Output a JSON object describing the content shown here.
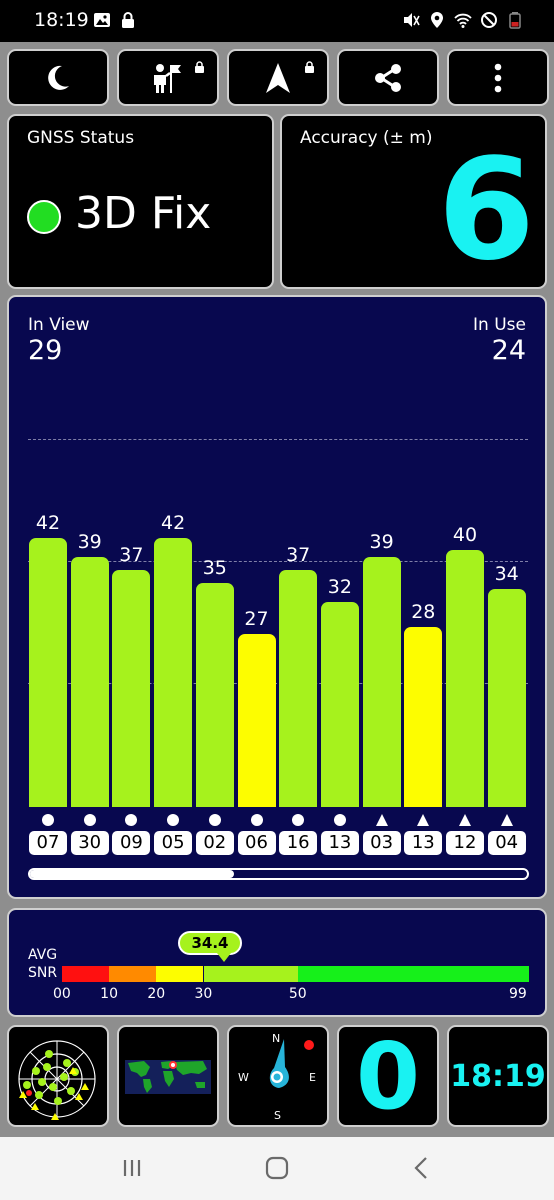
{
  "status_bar": {
    "time": "18:19",
    "left_icons": [
      "image-icon",
      "lock-icon"
    ],
    "right_icons": [
      "mute-icon",
      "location-icon",
      "wifi-icon",
      "do-not-disturb-icon",
      "battery-icon"
    ]
  },
  "toolbar": {
    "buttons": [
      {
        "icon": "moon-icon",
        "locked": false
      },
      {
        "icon": "tourist-flag-icon",
        "locked": true
      },
      {
        "icon": "navigation-arrow-icon",
        "locked": true
      },
      {
        "icon": "share-icon",
        "locked": false
      },
      {
        "icon": "more-vert-icon",
        "locked": false
      }
    ]
  },
  "gnss_status": {
    "title": "GNSS Status",
    "fix": "3D Fix",
    "fix_color": "#22dd22"
  },
  "accuracy": {
    "title": "Accuracy (± m)",
    "value": "6"
  },
  "satellites": {
    "in_view_label": "In View",
    "in_view": "29",
    "in_use_label": "In Use",
    "in_use": "24",
    "ymax": 58,
    "colors": {
      "strong": "#a6f21d",
      "weak": "#fdfd00",
      "background": "#08084f"
    },
    "bars": [
      {
        "id": "07",
        "snr": 42,
        "constellation": "circle"
      },
      {
        "id": "30",
        "snr": 39,
        "constellation": "circle"
      },
      {
        "id": "09",
        "snr": 37,
        "constellation": "circle"
      },
      {
        "id": "05",
        "snr": 42,
        "constellation": "circle"
      },
      {
        "id": "02",
        "snr": 35,
        "constellation": "circle"
      },
      {
        "id": "06",
        "snr": 27,
        "constellation": "circle"
      },
      {
        "id": "16",
        "snr": 37,
        "constellation": "circle"
      },
      {
        "id": "13",
        "snr": 32,
        "constellation": "circle"
      },
      {
        "id": "03",
        "snr": 39,
        "constellation": "triangle"
      },
      {
        "id": "13",
        "snr": 28,
        "constellation": "triangle"
      },
      {
        "id": "12",
        "snr": 40,
        "constellation": "triangle"
      },
      {
        "id": "04",
        "snr": 34,
        "constellation": "triangle"
      }
    ],
    "scroll_fraction": 0.41
  },
  "snr_scale": {
    "avg_label": "AVG",
    "snr_label": "SNR",
    "avg_value": "34.4",
    "ticks": [
      "00",
      "10",
      "20",
      "30",
      "50",
      "99"
    ],
    "segments": [
      {
        "from": 0,
        "to": 10,
        "color": "#ff1010"
      },
      {
        "from": 10,
        "to": 20,
        "color": "#ff8a00"
      },
      {
        "from": 20,
        "to": 30,
        "color": "#fdfd00"
      },
      {
        "from": 30,
        "to": 50,
        "color": "#a6f21d"
      },
      {
        "from": 50,
        "to": 99,
        "color": "#16f01a"
      }
    ]
  },
  "widgets": {
    "sky_plot": "radar-plot-icon",
    "world_map": "world-map-icon",
    "compass": {
      "n": "N",
      "e": "E",
      "s": "S",
      "w": "W"
    },
    "count": "0",
    "clock": "18:19"
  },
  "navbar": {
    "buttons": [
      "recents-icon",
      "home-icon",
      "back-icon"
    ]
  }
}
